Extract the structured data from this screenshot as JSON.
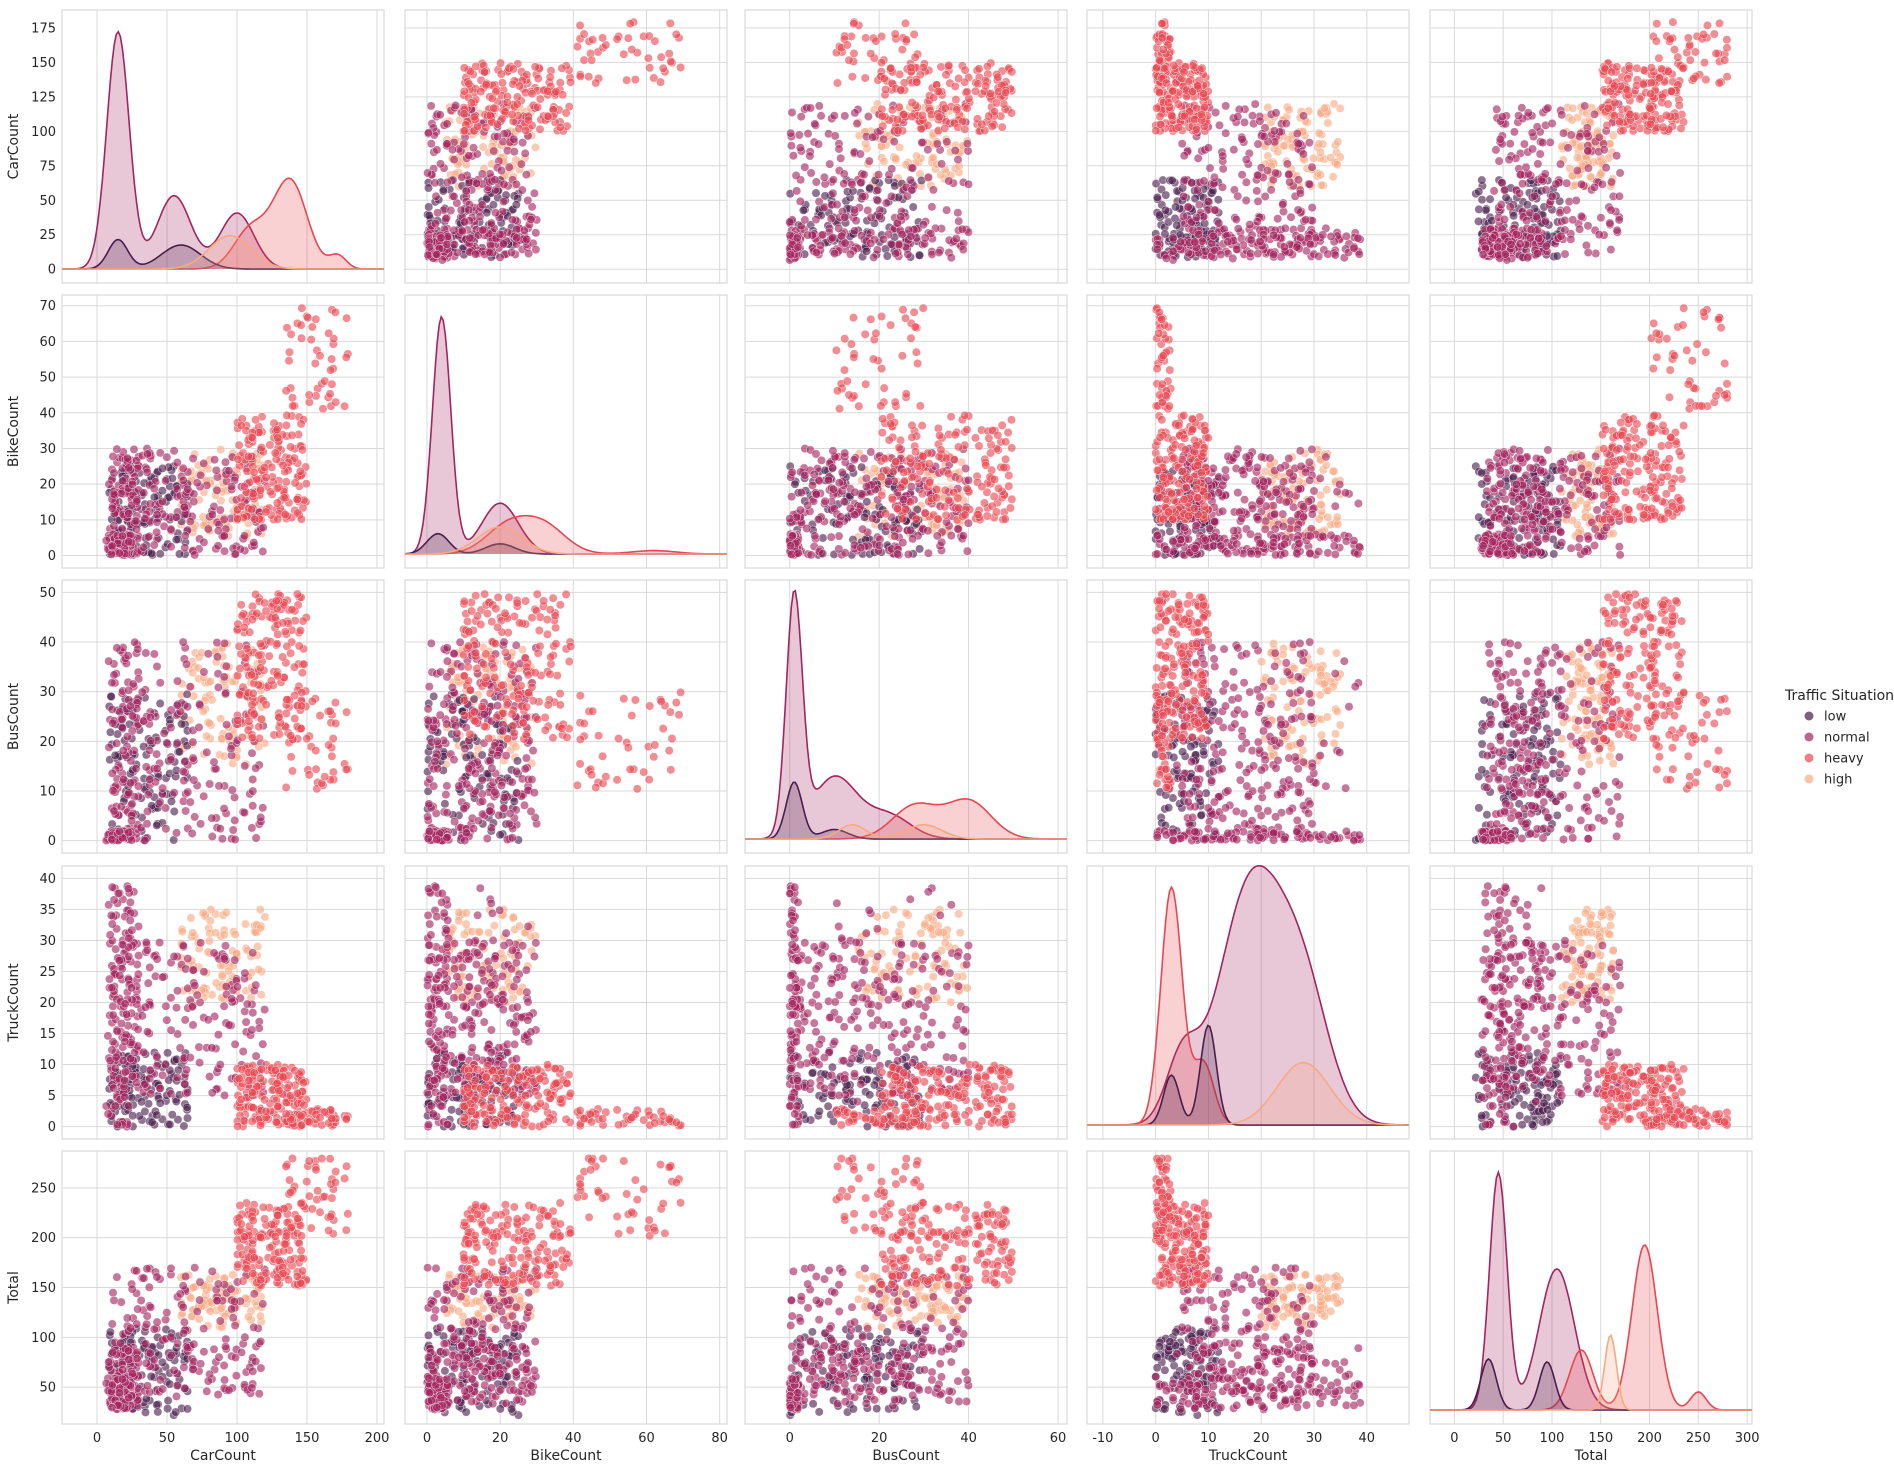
{
  "chart_data": {
    "type": "pairplot",
    "variables": [
      "CarCount",
      "BikeCount",
      "BusCount",
      "TruckCount",
      "Total"
    ],
    "diagonal": "kde",
    "off_diagonal": "scatter",
    "grid": true,
    "legend": {
      "title": "Traffic Situation",
      "placement": "right-center",
      "entries": [
        "low",
        "normal",
        "heavy",
        "high"
      ]
    },
    "hue_colors": {
      "low": "#4a1d4c",
      "normal": "#a3245e",
      "heavy": "#e84751",
      "high": "#f9a982"
    },
    "axes": {
      "CarCount": {
        "lim": [
          -25,
          205
        ],
        "ticks": [
          0,
          50,
          100,
          150,
          200
        ],
        "row_ticks": [
          0,
          25,
          50,
          75,
          100,
          125,
          150,
          175
        ],
        "row_lim": [
          -10,
          188
        ]
      },
      "BikeCount": {
        "lim": [
          -6,
          82
        ],
        "ticks": [
          0,
          20,
          40,
          60,
          80
        ],
        "row_ticks": [
          0,
          10,
          20,
          30,
          40,
          50,
          60,
          70
        ],
        "row_lim": [
          -3.5,
          73
        ]
      },
      "BusCount": {
        "lim": [
          -10,
          62
        ],
        "ticks": [
          0,
          20,
          40,
          60
        ],
        "row_ticks": [
          0,
          10,
          20,
          30,
          40,
          50
        ],
        "row_lim": [
          -2.5,
          52.5
        ]
      },
      "TruckCount": {
        "lim": [
          -13,
          48
        ],
        "ticks": [
          -10,
          0,
          10,
          20,
          30,
          40
        ],
        "row_ticks": [
          0,
          5,
          10,
          15,
          20,
          25,
          30,
          35,
          40
        ],
        "row_lim": [
          -2,
          42
        ]
      },
      "Total": {
        "lim": [
          -25,
          305
        ],
        "ticks": [
          0,
          50,
          100,
          150,
          200,
          250,
          300
        ],
        "row_ticks": [
          50,
          100,
          150,
          200,
          250
        ],
        "row_lim": [
          13,
          287
        ]
      }
    },
    "clusters": [
      {
        "group": "low",
        "ranges": {
          "CarCount": [
            8,
            65
          ],
          "BikeCount": [
            0,
            25
          ],
          "BusCount": [
            0,
            30
          ],
          "TruckCount": [
            0,
            12
          ],
          "Total": [
            20,
            110
          ]
        }
      },
      {
        "group": "normal",
        "ranges": {
          "CarCount": [
            8,
            30
          ],
          "BikeCount": [
            0,
            28
          ],
          "BusCount": [
            0,
            40
          ],
          "TruckCount": [
            0,
            40
          ],
          "Total": [
            30,
            90
          ]
        }
      },
      {
        "group": "normal",
        "ranges": {
          "CarCount": [
            10,
            120
          ],
          "BikeCount": [
            0,
            30
          ],
          "BusCount": [
            0,
            40
          ],
          "TruckCount": [
            5,
            30
          ],
          "Total": [
            40,
            170
          ]
        }
      },
      {
        "group": "normal",
        "ranges": {
          "CarCount": [
            6,
            25
          ],
          "BikeCount": [
            0,
            6
          ],
          "BusCount": [
            0,
            2
          ],
          "TruckCount": [
            0,
            40
          ],
          "Total": [
            25,
            60
          ]
        }
      },
      {
        "group": "heavy",
        "ranges": {
          "CarCount": [
            100,
            150
          ],
          "BikeCount": [
            10,
            40
          ],
          "BusCount": [
            20,
            50
          ],
          "TruckCount": [
            0,
            10
          ],
          "Total": [
            150,
            235
          ]
        }
      },
      {
        "group": "heavy",
        "ranges": {
          "CarCount": [
            135,
            180
          ],
          "BikeCount": [
            40,
            70
          ],
          "BusCount": [
            10,
            30
          ],
          "TruckCount": [
            0,
            3
          ],
          "Total": [
            200,
            280
          ]
        }
      },
      {
        "group": "high",
        "ranges": {
          "CarCount": [
            60,
            120
          ],
          "BikeCount": [
            5,
            30
          ],
          "BusCount": [
            15,
            40
          ],
          "TruckCount": [
            20,
            35
          ],
          "Total": [
            110,
            165
          ]
        }
      }
    ],
    "kde": {
      "CarCount": [
        {
          "group": "normal",
          "peaks": [
            [
              15,
              178,
              8
            ],
            [
              55,
              55,
              12
            ],
            [
              100,
              42,
              12
            ]
          ]
        },
        {
          "group": "heavy",
          "peaks": [
            [
              110,
              30,
              12
            ],
            [
              138,
              66,
              12
            ],
            [
              172,
              10,
              6
            ]
          ]
        },
        {
          "group": "low",
          "peaks": [
            [
              15,
              22,
              7
            ],
            [
              60,
              18,
              14
            ]
          ]
        },
        {
          "group": "high",
          "peaks": [
            [
              95,
              25,
              15
            ]
          ]
        }
      ],
      "BikeCount": [
        {
          "group": "normal",
          "peaks": [
            [
              4,
              70,
              2.5
            ],
            [
              20,
              15,
              5
            ]
          ]
        },
        {
          "group": "heavy",
          "peaks": [
            [
              22,
              8,
              6
            ],
            [
              32,
              8,
              6
            ],
            [
              62,
              1,
              6
            ]
          ]
        },
        {
          "group": "low",
          "peaks": [
            [
              3,
              6,
              3
            ],
            [
              20,
              3,
              4
            ]
          ]
        },
        {
          "group": "high",
          "peaks": [
            [
              20,
              8,
              6
            ]
          ]
        }
      ],
      "BusCount": [
        {
          "group": "normal",
          "peaks": [
            [
              1,
              50,
              1.8
            ],
            [
              10,
              13,
              5
            ],
            [
              22,
              5,
              5
            ]
          ]
        },
        {
          "group": "heavy",
          "peaks": [
            [
              28,
              7,
              5
            ],
            [
              40,
              8,
              5
            ]
          ]
        },
        {
          "group": "low",
          "peaks": [
            [
              1,
              12,
              1.8
            ],
            [
              10,
              2,
              3
            ]
          ]
        },
        {
          "group": "high",
          "peaks": [
            [
              14,
              3,
              3
            ],
            [
              30,
              3,
              4
            ]
          ]
        }
      ],
      "TruckCount": [
        {
          "group": "normal",
          "peaks": [
            [
              18,
              38,
              6
            ],
            [
              28,
              20,
              5
            ],
            [
              5,
              10,
              3
            ]
          ]
        },
        {
          "group": "heavy",
          "peaks": [
            [
              3,
              38,
              2
            ],
            [
              9,
              10,
              2
            ]
          ]
        },
        {
          "group": "low",
          "peaks": [
            [
              3,
              8,
              1.5
            ],
            [
              10,
              16,
              1.5
            ]
          ]
        },
        {
          "group": "high",
          "peaks": [
            [
              28,
              10,
              5
            ]
          ]
        }
      ],
      "Total": [
        {
          "group": "normal",
          "peaks": [
            [
              45,
              79,
              9
            ],
            [
              105,
              47,
              18
            ]
          ]
        },
        {
          "group": "heavy",
          "peaks": [
            [
              130,
              20,
              12
            ],
            [
              195,
              55,
              13
            ],
            [
              250,
              6,
              8
            ]
          ]
        },
        {
          "group": "low",
          "peaks": [
            [
              35,
              17,
              8
            ],
            [
              95,
              16,
              8
            ]
          ]
        },
        {
          "group": "high",
          "peaks": [
            [
              160,
              25,
              6
            ]
          ]
        }
      ]
    }
  }
}
